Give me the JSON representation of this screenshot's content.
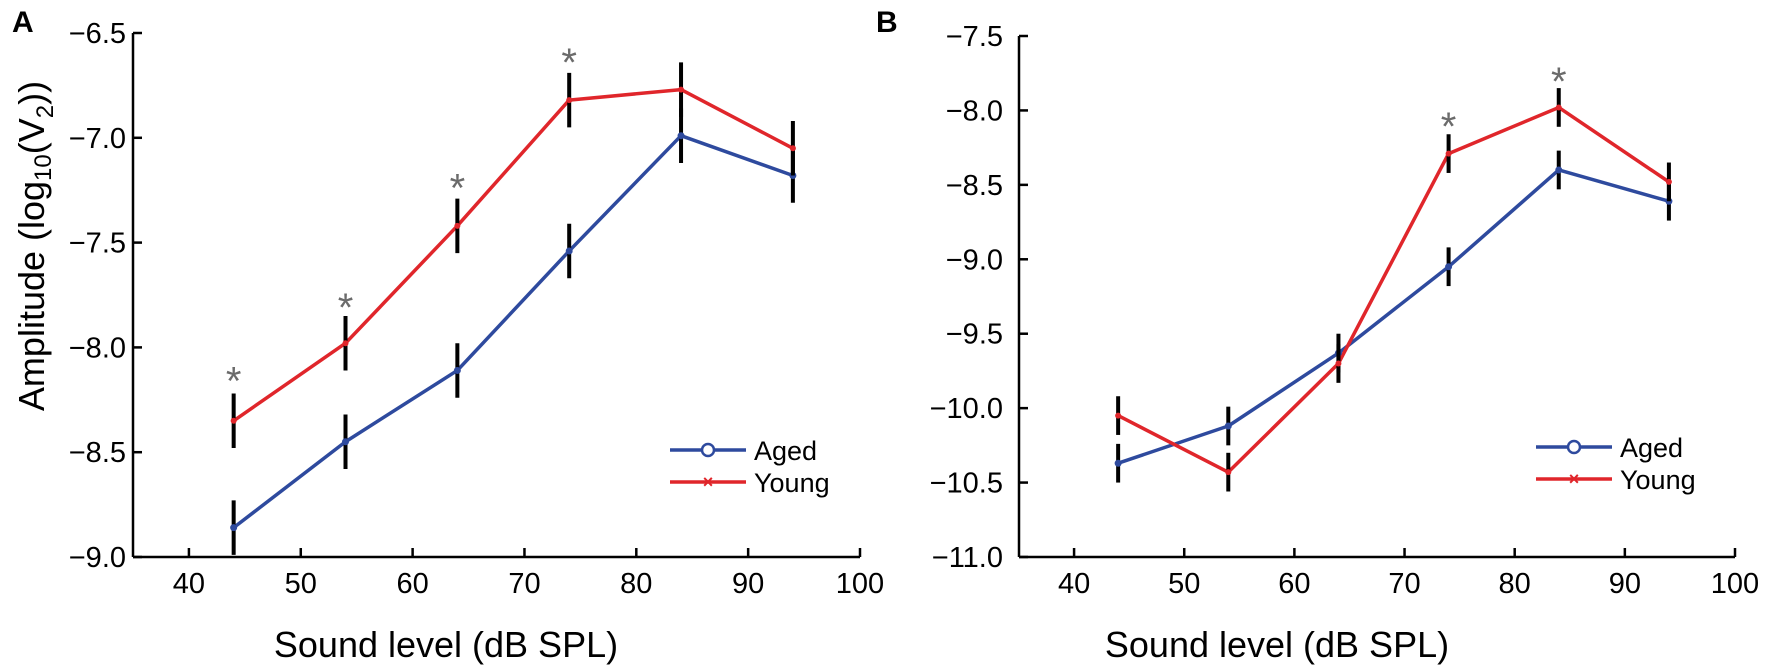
{
  "chart_data": [
    {
      "type": "line",
      "panel_label": "A",
      "xlabel": "Sound level (dB SPL)",
      "ylabel": "Amplitude (log10(V2))",
      "ylabel_parts": {
        "main": "Amplitude (log",
        "sub": "10",
        "mid": "(V",
        "sup": "2",
        "end": "))"
      },
      "xlim": [
        35,
        100
      ],
      "ylim": [
        -9.0,
        -6.5
      ],
      "xticks": [
        40,
        50,
        60,
        70,
        80,
        90,
        100
      ],
      "yticks": [
        -9.0,
        -8.5,
        -8.0,
        -7.5,
        -7.0,
        -6.5
      ],
      "xtick_labels": [
        "40",
        "50",
        "60",
        "70",
        "80",
        "90",
        "100"
      ],
      "ytick_labels": [
        "−9.0",
        "−8.5",
        "−8.0",
        "−7.5",
        "−7.0",
        "−6.5"
      ],
      "x": [
        44,
        54,
        64,
        74,
        84,
        94
      ],
      "series": [
        {
          "name": "Aged",
          "color": "#2e4a9e",
          "marker": "circle",
          "values": [
            -8.86,
            -8.45,
            -8.11,
            -7.54,
            -6.99,
            -7.18
          ],
          "errors": [
            0.13,
            0.13,
            0.13,
            0.13,
            0.13,
            0.13
          ]
        },
        {
          "name": "Young",
          "color": "#e0262b",
          "marker": "x",
          "values": [
            -8.35,
            -7.98,
            -7.42,
            -6.82,
            -6.77,
            -7.05
          ],
          "errors": [
            0.13,
            0.13,
            0.13,
            0.13,
            0.13,
            0.13
          ]
        }
      ],
      "significance": [
        {
          "x": 44,
          "y": -8.12,
          "label": "*"
        },
        {
          "x": 54,
          "y": -7.77,
          "label": "*"
        },
        {
          "x": 64,
          "y": -7.2,
          "label": "*"
        },
        {
          "x": 74,
          "y": -6.6,
          "label": "*"
        }
      ],
      "legend": {
        "position": "bottom-right",
        "entries": [
          "Aged",
          "Young"
        ]
      }
    },
    {
      "type": "line",
      "panel_label": "B",
      "xlabel": "Sound level (dB SPL)",
      "ylabel": "",
      "xlim": [
        35,
        100
      ],
      "ylim": [
        -11.0,
        -7.5
      ],
      "xticks": [
        40,
        50,
        60,
        70,
        80,
        90,
        100
      ],
      "yticks": [
        -11.0,
        -10.5,
        -10.0,
        -9.5,
        -9.0,
        -8.5,
        -8.0,
        -7.5
      ],
      "xtick_labels": [
        "40",
        "50",
        "60",
        "70",
        "80",
        "90",
        "100"
      ],
      "ytick_labels": [
        "−11.0",
        "−10.5",
        "−10.0",
        "−9.5",
        "−9.0",
        "−8.5",
        "−8.0",
        "−7.5"
      ],
      "x": [
        44,
        54,
        64,
        74,
        84,
        94
      ],
      "series": [
        {
          "name": "Aged",
          "color": "#2e4a9e",
          "marker": "circle",
          "values": [
            -10.37,
            -10.12,
            -9.63,
            -9.05,
            -8.4,
            -8.61
          ],
          "errors": [
            0.13,
            0.13,
            0.13,
            0.13,
            0.13,
            0.13
          ]
        },
        {
          "name": "Young",
          "color": "#e0262b",
          "marker": "x",
          "values": [
            -10.05,
            -10.43,
            -9.7,
            -8.29,
            -7.98,
            -8.48
          ],
          "errors": [
            0.13,
            0.13,
            0.13,
            0.13,
            0.13,
            0.13
          ]
        }
      ],
      "significance": [
        {
          "x": 74,
          "y": -8.05,
          "label": "*"
        },
        {
          "x": 84,
          "y": -7.75,
          "label": "*"
        }
      ],
      "legend": {
        "position": "bottom-right",
        "entries": [
          "Aged",
          "Young"
        ]
      }
    }
  ]
}
